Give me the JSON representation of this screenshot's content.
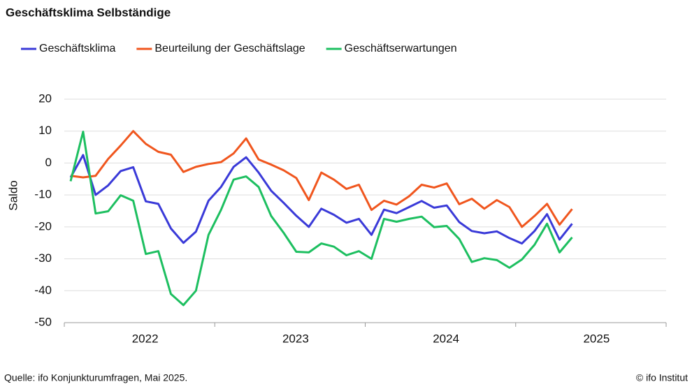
{
  "chart_data": {
    "type": "line",
    "title": "Geschäftsklima Selbständige",
    "y_label": "Saldo",
    "source": "Quelle: ifo Konjunkturumfragen, Mai 2025.",
    "credit": "© ifo Institut",
    "x": [
      2022.0417,
      2022.125,
      2022.2083,
      2022.2917,
      2022.375,
      2022.4583,
      2022.5417,
      2022.625,
      2022.7083,
      2022.7917,
      2022.875,
      2022.9583,
      2023.0417,
      2023.125,
      2023.2083,
      2023.2917,
      2023.375,
      2023.4583,
      2023.5417,
      2023.625,
      2023.7083,
      2023.7917,
      2023.875,
      2023.9583,
      2024.0417,
      2024.125,
      2024.2083,
      2024.2917,
      2024.375,
      2024.4583,
      2024.5417,
      2024.625,
      2024.7083,
      2024.7917,
      2024.875,
      2024.9583,
      2025.0417,
      2025.125,
      2025.2083,
      2025.2917,
      2025.375
    ],
    "series": [
      {
        "name": "Geschäftsklima",
        "color": "#3a3ad8",
        "values": [
          -4.5,
          2.5,
          -10,
          -7,
          -2.5,
          -1.3,
          -12,
          -12.8,
          -20.5,
          -25,
          -21.5,
          -11.8,
          -7.5,
          -1.2,
          1.8,
          -3,
          -8.7,
          -12.5,
          -16.5,
          -20,
          -14.3,
          -16.2,
          -18.7,
          -17.5,
          -22.5,
          -14.6,
          -15.7,
          -13.8,
          -11.9,
          -14,
          -13.3,
          -18.5,
          -21.3,
          -22,
          -21.4,
          -23.5,
          -25.2,
          -21.3,
          -16,
          -24,
          -19
        ]
      },
      {
        "name": "Beurteilung der Geschäftslage",
        "color": "#f0561e",
        "values": [
          -4,
          -4.5,
          -4,
          1.3,
          5.5,
          10,
          6,
          3.5,
          2.6,
          -2.8,
          -1.2,
          -0.3,
          0.3,
          3,
          7.7,
          1.1,
          -0.5,
          -2.3,
          -4.7,
          -11.6,
          -3,
          -5.2,
          -8.1,
          -6.8,
          -14.7,
          -11.8,
          -13,
          -10.4,
          -6.8,
          -7.7,
          -6.4,
          -12.9,
          -11.2,
          -14.3,
          -11.6,
          -13.8,
          -20,
          -16.6,
          -12.8,
          -19.3,
          -14.4
        ]
      },
      {
        "name": "Geschäftserwartungen",
        "color": "#1dbf60",
        "values": [
          -5.7,
          9.8,
          -15.8,
          -15.1,
          -10.1,
          -11.8,
          -28.5,
          -27.6,
          -41,
          -44.5,
          -40,
          -22.5,
          -14.7,
          -5.2,
          -4.2,
          -7.5,
          -16.6,
          -21.9,
          -27.8,
          -28,
          -25.2,
          -26.2,
          -28.9,
          -27.6,
          -30,
          -17.5,
          -18.4,
          -17.5,
          -16.8,
          -20.1,
          -19.7,
          -23.8,
          -31,
          -29.8,
          -30.4,
          -32.8,
          -30.2,
          -25.6,
          -19,
          -28,
          -23.3
        ]
      }
    ],
    "xlim": [
      2022,
      2026
    ],
    "xticks": [
      {
        "value": 2022.5,
        "label": "2022"
      },
      {
        "value": 2023.5,
        "label": "2023"
      },
      {
        "value": 2024.5,
        "label": "2024"
      },
      {
        "value": 2025.5,
        "label": "2025"
      }
    ],
    "x_minor_ticks": [
      2022,
      2023,
      2024,
      2025,
      2026
    ],
    "ylim": [
      -50,
      20
    ],
    "yticks": [
      -50,
      -40,
      -30,
      -20,
      -10,
      0,
      10,
      20
    ],
    "grid": true,
    "legend": "top-left"
  }
}
